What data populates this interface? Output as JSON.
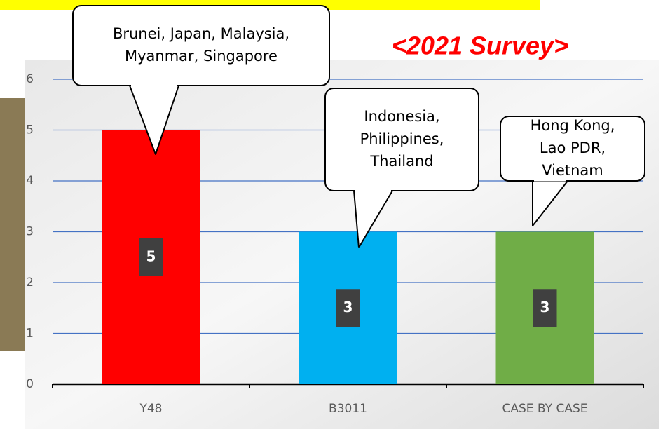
{
  "chart_data": {
    "type": "bar",
    "subtitle": "<2021 Survey>",
    "categories": [
      "Y48",
      "B3011",
      "CASE BY CASE"
    ],
    "values": [
      5,
      3,
      3
    ],
    "colors": [
      "#ff0000",
      "#00b0f0",
      "#70ad47"
    ],
    "ylim": [
      0,
      6
    ],
    "yticks": [
      0,
      1,
      2,
      3,
      4,
      5,
      6
    ],
    "grid": true,
    "annotations": [
      {
        "lines": [
          "Brunei, Japan, Malaysia,",
          "Myanmar, Singapore"
        ]
      },
      {
        "lines": [
          "Indonesia,",
          "Philippines,",
          "Thailand"
        ]
      },
      {
        "lines": [
          "Hong Kong,",
          "Lao PDR,",
          "Vietnam"
        ]
      }
    ]
  }
}
